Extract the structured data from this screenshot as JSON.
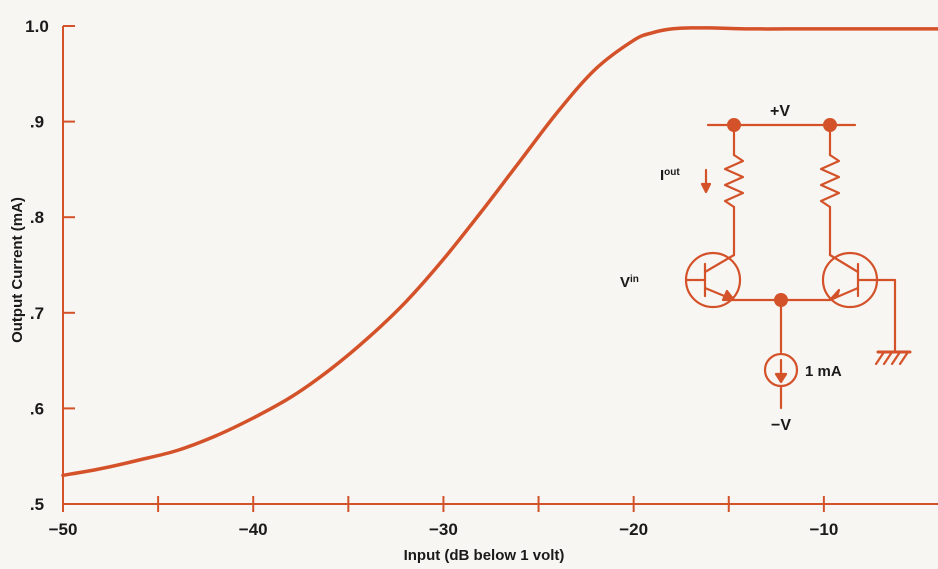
{
  "chart_data": {
    "type": "line",
    "xlabel": "Input (dB below 1 volt)",
    "ylabel": "Output Current (mA)",
    "xlim": [
      -50,
      -4
    ],
    "ylim": [
      0.5,
      1.0
    ],
    "x_ticks": [
      -50,
      -40,
      -30,
      -20,
      -10
    ],
    "x_tick_labels": [
      "−50",
      "−40",
      "−30",
      "−20",
      "−10"
    ],
    "x_minor_ticks": [
      -45,
      -35,
      -25,
      -15
    ],
    "y_ticks": [
      0.5,
      0.6,
      0.7,
      0.8,
      0.9,
      1.0
    ],
    "y_tick_labels": [
      ".5",
      ".6",
      ".7",
      ".8",
      ".9",
      "1.0"
    ],
    "grid": false,
    "series": [
      {
        "x": [
          -50,
          -48,
          -46,
          -44,
          -42,
          -40,
          -38,
          -36,
          -34,
          -32,
          -30,
          -28,
          -26,
          -24,
          -22,
          -20,
          -19,
          -18,
          -17,
          -16,
          -14,
          -12,
          -10,
          -8,
          -6,
          -4
        ],
        "values": [
          0.53,
          0.537,
          0.546,
          0.556,
          0.571,
          0.59,
          0.612,
          0.64,
          0.673,
          0.711,
          0.756,
          0.806,
          0.858,
          0.91,
          0.955,
          0.985,
          0.993,
          0.997,
          0.998,
          0.998,
          0.997,
          0.997,
          0.997,
          0.997,
          0.997,
          0.997
        ]
      }
    ],
    "colors": {
      "curve": "#d4522a",
      "axis": "#d4522a",
      "text": "#1a1a1a",
      "background": "#f8f6f2"
    }
  },
  "inset_circuit": {
    "supply_pos_label": "+V",
    "supply_neg_label": "−V",
    "output_label": "I",
    "output_sub": "out",
    "input_label": "V",
    "input_sub": "in",
    "current_source_label": "1 mA",
    "ground_icon": "ground-icon"
  }
}
